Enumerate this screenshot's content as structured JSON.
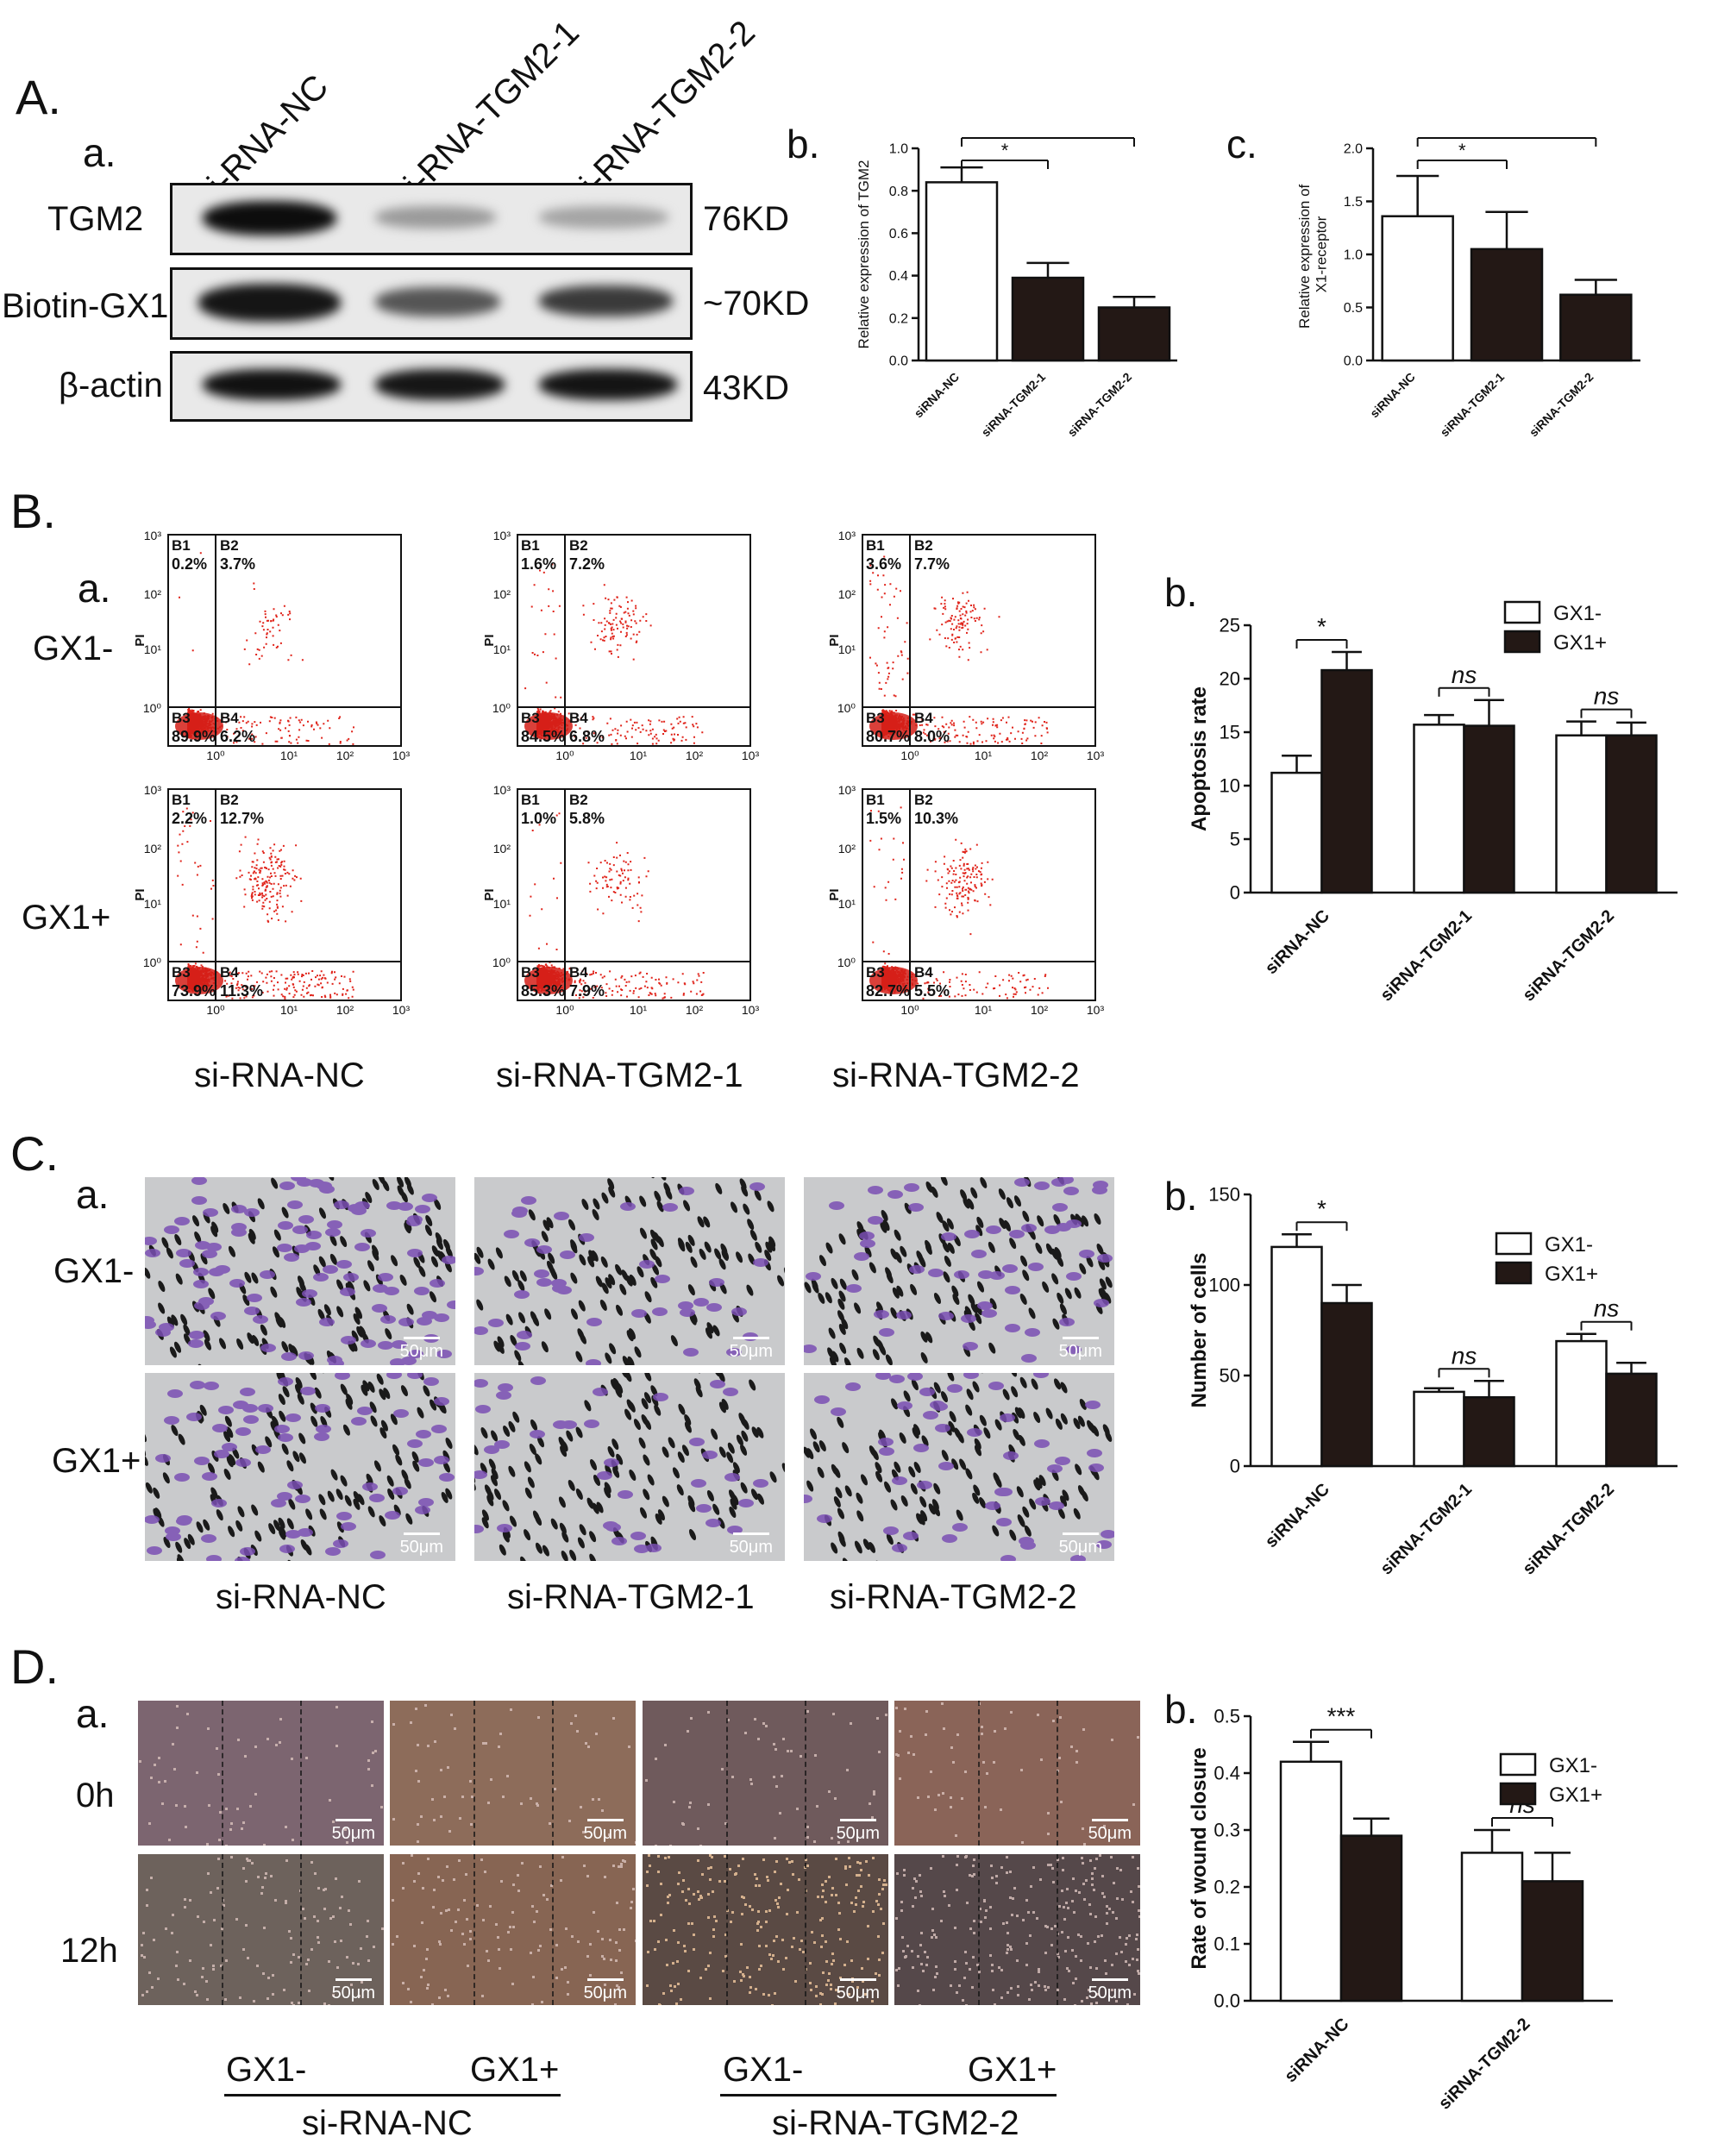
{
  "panel_A": {
    "letter": "A.",
    "sub_a": {
      "letter": "a.",
      "lanes": [
        "si-RNA-NC",
        "si-RNA-TGM2-1",
        "si-RNA-TGM2-2"
      ],
      "rows": [
        {
          "label": "TGM2",
          "size": "76KD"
        },
        {
          "label": "Biotin-GX1",
          "size": "~70KD"
        },
        {
          "label": "β-actin",
          "size": "43KD"
        }
      ]
    },
    "sub_b": {
      "letter": "b."
    },
    "sub_c": {
      "letter": "c."
    }
  },
  "panel_B": {
    "letter": "B.",
    "sub_a": {
      "letter": "a.",
      "row_labels": [
        "GX1-",
        "GX1+"
      ],
      "col_labels": [
        "si-RNA-NC",
        "si-RNA-TGM2-1",
        "si-RNA-TGM2-2"
      ],
      "axis_label": "PI",
      "tick_labels": [
        "10⁰",
        "10¹",
        "10²",
        "10³"
      ],
      "quadrant_names": [
        "B1",
        "B2",
        "B3",
        "B4"
      ],
      "quadrants": [
        [
          [
            "0.2%",
            "3.7%",
            "89.9%",
            "6.2%"
          ],
          [
            "1.6%",
            "7.2%",
            "84.5%",
            "6.8%"
          ],
          [
            "3.6%",
            "7.7%",
            "80.7%",
            "8.0%"
          ]
        ],
        [
          [
            "2.2%",
            "12.7%",
            "73.9%",
            "11.3%"
          ],
          [
            "1.0%",
            "5.8%",
            "85.3%",
            "7.9%"
          ],
          [
            "1.5%",
            "10.3%",
            "82.7%",
            "5.5%"
          ]
        ]
      ]
    },
    "sub_b": {
      "letter": "b."
    }
  },
  "panel_C": {
    "letter": "C.",
    "sub_a": {
      "letter": "a.",
      "row_labels": [
        "GX1-",
        "GX1+"
      ],
      "col_labels": [
        "si-RNA-NC",
        "si-RNA-TGM2-1",
        "si-RNA-TGM2-2"
      ],
      "scale_bar": "50μm"
    },
    "sub_b": {
      "letter": "b."
    }
  },
  "panel_D": {
    "letter": "D.",
    "sub_a": {
      "letter": "a.",
      "row_labels": [
        "0h",
        "12h"
      ],
      "scale_bar": "50μm",
      "treatment_labels": [
        "GX1-",
        "GX1+",
        "GX1-",
        "GX1+"
      ],
      "group_labels": [
        "si-RNA-NC",
        "si-RNA-TGM2-2"
      ]
    },
    "sub_b": {
      "letter": "b."
    }
  },
  "chart_data": [
    {
      "id": "A-b",
      "type": "bar",
      "ylabel": "Relative expression of TGM2",
      "categories": [
        "siRNA-NC",
        "siRNA-TGM2-1",
        "siRNA-TGM2-2"
      ],
      "values": [
        0.84,
        0.39,
        0.25
      ],
      "errors": [
        0.07,
        0.07,
        0.05
      ],
      "fills": [
        "#ffffff",
        "#231815",
        "#231815"
      ],
      "ylim": [
        0,
        1.0
      ],
      "yticks": [
        0.0,
        0.2,
        0.4,
        0.6,
        0.8,
        1.0
      ],
      "ytick_labels": [
        "0.0",
        "0.2",
        "0.4",
        "0.6",
        "0.8",
        "1.0"
      ],
      "significance": [
        {
          "from": 0,
          "to": 1,
          "label": "*"
        },
        {
          "from": 0,
          "to": 2,
          "label": "**"
        }
      ]
    },
    {
      "id": "A-c",
      "type": "bar",
      "ylabel": "Relative expression of GX1-receptor",
      "categories": [
        "siRNA-NC",
        "siRNA-TGM2-1",
        "siRNA-TGM2-2"
      ],
      "values": [
        1.36,
        1.05,
        0.62
      ],
      "errors": [
        0.38,
        0.35,
        0.14
      ],
      "fills": [
        "#ffffff",
        "#231815",
        "#231815"
      ],
      "ylim": [
        0,
        2.0
      ],
      "yticks": [
        0.0,
        0.5,
        1.0,
        1.5,
        2.0
      ],
      "ytick_labels": [
        "0.0",
        "0.5",
        "1.0",
        "1.5",
        "2.0"
      ],
      "significance": [
        {
          "from": 0,
          "to": 1,
          "label": "*"
        },
        {
          "from": 0,
          "to": 2,
          "label": "**"
        }
      ]
    },
    {
      "id": "B-b",
      "type": "bar",
      "ylabel": "Apoptosis rate",
      "categories": [
        "siRNA-NC",
        "siRNA-TGM2-1",
        "siRNA-TGM2-2"
      ],
      "series": [
        {
          "name": "GX1-",
          "values": [
            11.2,
            15.7,
            14.7
          ],
          "errors": [
            1.6,
            0.9,
            1.3
          ],
          "fill": "#ffffff"
        },
        {
          "name": "GX1+",
          "values": [
            20.8,
            15.6,
            14.7
          ],
          "errors": [
            1.7,
            2.4,
            1.2
          ],
          "fill": "#231815"
        }
      ],
      "ylim": [
        0,
        25
      ],
      "yticks": [
        0,
        5,
        10,
        15,
        20,
        25
      ],
      "ytick_labels": [
        "0",
        "5",
        "10",
        "15",
        "20",
        "25"
      ],
      "significance": [
        {
          "group": 0,
          "label": "*"
        },
        {
          "group": 1,
          "label": "ns"
        },
        {
          "group": 2,
          "label": "ns"
        }
      ],
      "legend": "top-right"
    },
    {
      "id": "C-b",
      "type": "bar",
      "ylabel": "Number of cells",
      "categories": [
        "siRNA-NC",
        "siRNA-TGM2-1",
        "siRNA-TGM2-2"
      ],
      "series": [
        {
          "name": "GX1-",
          "values": [
            121,
            41,
            69
          ],
          "errors": [
            7,
            2,
            4
          ],
          "fill": "#ffffff"
        },
        {
          "name": "GX1+",
          "values": [
            90,
            38,
            51
          ],
          "errors": [
            10,
            9,
            6
          ],
          "fill": "#231815"
        }
      ],
      "ylim": [
        0,
        150
      ],
      "yticks": [
        0,
        50,
        100,
        150
      ],
      "ytick_labels": [
        "0",
        "50",
        "100",
        "150"
      ],
      "significance": [
        {
          "group": 0,
          "label": "*"
        },
        {
          "group": 1,
          "label": "ns"
        },
        {
          "group": 2,
          "label": "ns"
        }
      ],
      "legend": "top-right"
    },
    {
      "id": "D-b",
      "type": "bar",
      "ylabel": "Rate of wound closure",
      "categories": [
        "siRNA-NC",
        "siRNA-TGM2-2"
      ],
      "series": [
        {
          "name": "GX1-",
          "values": [
            0.42,
            0.26
          ],
          "errors": [
            0.035,
            0.04
          ],
          "fill": "#ffffff"
        },
        {
          "name": "GX1+",
          "values": [
            0.29,
            0.21
          ],
          "errors": [
            0.03,
            0.05
          ],
          "fill": "#231815"
        }
      ],
      "ylim": [
        0,
        0.5
      ],
      "yticks": [
        0.0,
        0.1,
        0.2,
        0.3,
        0.4,
        0.5
      ],
      "ytick_labels": [
        "0.0",
        "0.1",
        "0.2",
        "0.3",
        "0.4",
        "0.5"
      ],
      "significance": [
        {
          "group": 0,
          "label": "***"
        },
        {
          "group": 1,
          "label": "ns"
        }
      ],
      "legend": "top-right"
    }
  ]
}
